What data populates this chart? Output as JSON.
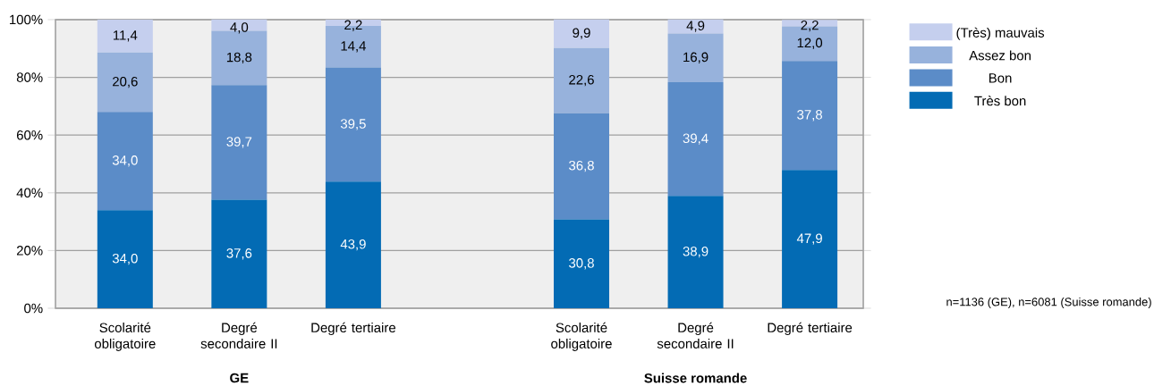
{
  "chart_data": {
    "type": "bar",
    "stacked": true,
    "categories": [
      "Scolarité obligatoire",
      "Degré secondaire II",
      "Degré tertiaire",
      null,
      "Scolarité obligatoire",
      "Degré secondaire II",
      "Degré tertiaire"
    ],
    "series": [
      {
        "name": "Très bon",
        "color": "#036bb4",
        "values": [
          34.0,
          37.6,
          43.9,
          null,
          30.8,
          38.9,
          47.9
        ],
        "value_labels": [
          "34,0",
          "37,6",
          "43,9",
          null,
          "30,8",
          "38,9",
          "47,9"
        ]
      },
      {
        "name": "Bon",
        "color": "#5b8cc8",
        "values": [
          34.0,
          39.7,
          39.5,
          null,
          36.8,
          39.4,
          37.8
        ],
        "value_labels": [
          "34,0",
          "39,7",
          "39,5",
          null,
          "36,8",
          "39,4",
          "37,8"
        ]
      },
      {
        "name": "Assez bon",
        "color": "#97b2dc",
        "values": [
          20.6,
          18.8,
          14.4,
          null,
          22.6,
          16.9,
          12.0
        ],
        "value_labels": [
          "20,6",
          "18,8",
          "14,4",
          null,
          "22,6",
          "16,9",
          "12,0"
        ]
      },
      {
        "name": "(Très) mauvais",
        "color": "#c5cfee",
        "values": [
          11.4,
          4.0,
          2.2,
          null,
          9.9,
          4.9,
          2.2
        ],
        "value_labels": [
          "11,4",
          "4,0",
          "2,2",
          null,
          "9,9",
          "4,9",
          "2,2"
        ]
      }
    ],
    "ylim": [
      0,
      100
    ],
    "yticks": [
      {
        "value": 0,
        "label": "0%"
      },
      {
        "value": 20,
        "label": "20%"
      },
      {
        "value": 40,
        "label": "40%"
      },
      {
        "value": 60,
        "label": "60%"
      },
      {
        "value": 80,
        "label": "80%"
      },
      {
        "value": 100,
        "label": "100%"
      }
    ],
    "grid": "y",
    "legend": "right",
    "annotations": [
      "GE",
      "Suisse romande",
      "n=1136 (GE), n=6081 (Suisse romande)"
    ]
  }
}
